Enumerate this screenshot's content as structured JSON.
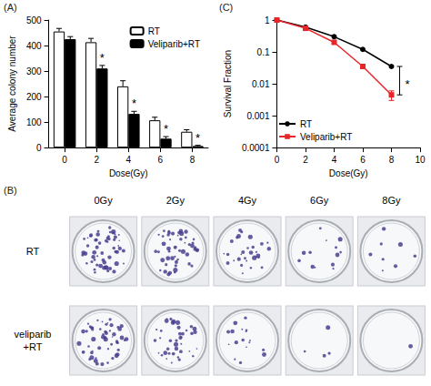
{
  "chart_data": [
    {
      "type": "bar",
      "panel": "(A)",
      "x_label": "Dose(Gy)",
      "y_label": "Average colony number",
      "categories": [
        "0",
        "2",
        "4",
        "6",
        "8"
      ],
      "series": [
        {
          "name": "RT",
          "color": "#ffffff",
          "values": [
            455,
            413,
            240,
            107,
            62
          ],
          "errors": [
            12,
            15,
            22,
            12,
            8
          ]
        },
        {
          "name": "Veliparib+RT",
          "color": "#000000",
          "values": [
            425,
            310,
            132,
            35,
            6
          ],
          "errors": [
            10,
            12,
            10,
            8,
            3
          ]
        }
      ],
      "ylim": [
        0,
        500
      ],
      "yticks": [
        0,
        100,
        200,
        300,
        400,
        500
      ],
      "grid": false,
      "legend": "upper right",
      "annotations": [
        {
          "text": "*",
          "category": "2",
          "series": "Veliparib+RT"
        },
        {
          "text": "*",
          "category": "4",
          "series": "Veliparib+RT"
        },
        {
          "text": "*",
          "category": "6",
          "series": "Veliparib+RT"
        },
        {
          "text": "*",
          "category": "8",
          "series": "Veliparib+RT"
        }
      ]
    },
    {
      "type": "line",
      "panel": "(C)",
      "x_label": "Dose(Gy)",
      "y_label": "Survival Fraction",
      "x": [
        0,
        2,
        4,
        6,
        8
      ],
      "series": [
        {
          "name": "RT",
          "color": "#000000",
          "marker": "circle",
          "line_style": "solid",
          "values": [
            1,
            0.6,
            0.3,
            0.12,
            0.035
          ]
        },
        {
          "name": "Veliparib+RT",
          "color": "#e8262a",
          "marker": "square",
          "line_style": "solid",
          "values": [
            1,
            0.55,
            0.2,
            0.035,
            0.0045
          ],
          "errors": [
            null,
            null,
            null,
            null,
            0.0015
          ]
        }
      ],
      "xlim": [
        0,
        10
      ],
      "xticks": [
        0,
        2,
        4,
        6,
        8,
        10
      ],
      "ylim": [
        0.0001,
        1
      ],
      "yticks": [
        1,
        0.1,
        0.01,
        0.001,
        0.0001
      ],
      "log": "y",
      "grid": false,
      "legend": "lower left",
      "annotations": [
        {
          "text": "*",
          "x": 8,
          "between": [
            "RT",
            "Veliparib+RT"
          ]
        }
      ]
    }
  ],
  "panel_b": {
    "panel": "(B)",
    "columns": [
      "0Gy",
      "2Gy",
      "4Gy",
      "6Gy",
      "8Gy"
    ],
    "rows": [
      {
        "label": "RT"
      },
      {
        "label": "veliparib+RT"
      }
    ]
  }
}
